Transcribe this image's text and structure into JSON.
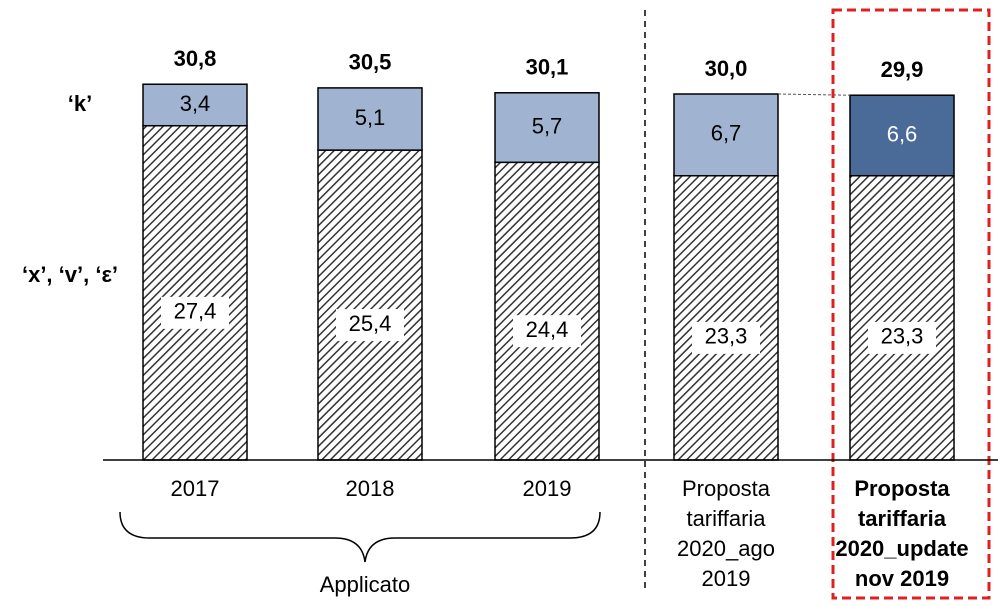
{
  "chart_data": {
    "type": "stacked_bar",
    "categories": [
      [
        "2017"
      ],
      [
        "2018"
      ],
      [
        "2019"
      ],
      [
        "Proposta",
        "tariffaria",
        "2020_ago",
        "2019"
      ],
      [
        "Proposta",
        "tariffaria",
        "2020_update",
        "nov 2019"
      ]
    ],
    "series": [
      {
        "name": "‘x’, ‘v’, ‘ε’",
        "color": "#333333",
        "pattern": "hatch",
        "values": [
          27.4,
          25.4,
          24.4,
          23.3,
          23.3
        ],
        "value_labels": [
          "27,4",
          "25,4",
          "24,4",
          "23,3",
          "23,3"
        ]
      },
      {
        "name": "‘k’",
        "colors": [
          "#a0b4d2",
          "#a0b4d2",
          "#a0b4d2",
          "#a0b4d2",
          "#4a6b98"
        ],
        "values": [
          3.4,
          5.1,
          5.7,
          6.7,
          6.6
        ],
        "value_labels": [
          "3,4",
          "5,1",
          "5,7",
          "6,7",
          "6,6"
        ]
      }
    ],
    "totals": [
      30.8,
      30.5,
      30.1,
      30.0,
      29.9
    ],
    "total_labels": [
      "30,8",
      "30,5",
      "30,1",
      "30,0",
      "29,9"
    ],
    "group_label": "Applicato",
    "highlight": 4
  }
}
